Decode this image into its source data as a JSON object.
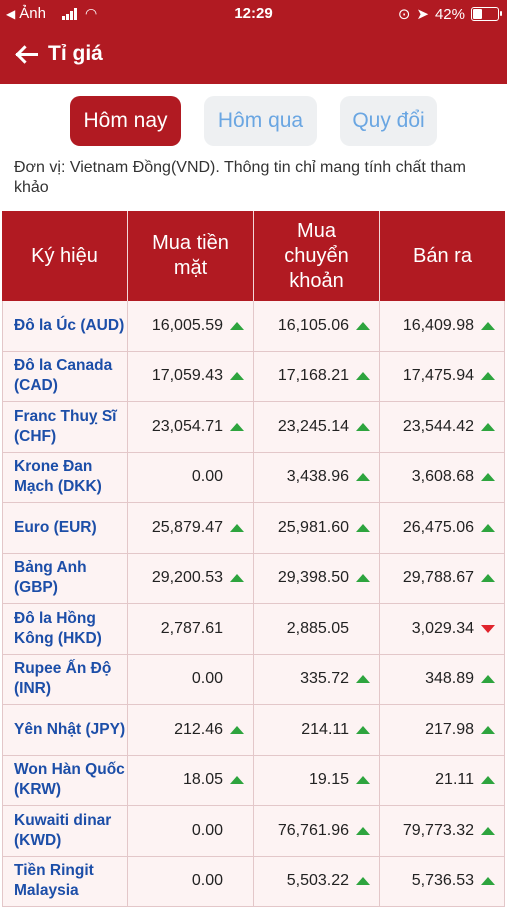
{
  "status_bar": {
    "back_app": "Ảnh",
    "time": "12:29",
    "battery": "42%",
    "battery_level": 0.42
  },
  "header": {
    "title": "Tỉ giá"
  },
  "tabs": [
    {
      "label": "Hôm nay",
      "active": true
    },
    {
      "label": "Hôm qua",
      "active": false
    },
    {
      "label": "Quy đổi",
      "active": false
    }
  ],
  "note": "Đơn vị: Vietnam Đồng(VND). Thông tin chỉ mang tính chất tham khảo",
  "table": {
    "headers": [
      "Ký hiệu",
      "Mua tiền mặt",
      "Mua chuyển khoản",
      "Bán ra"
    ],
    "rows": [
      {
        "name": "Đô la Úc (AUD)",
        "cash": "16,005.59",
        "cash_trend": "up",
        "transfer": "16,105.06",
        "transfer_trend": "up",
        "sell": "16,409.98",
        "sell_trend": "up"
      },
      {
        "name": "Đô la Canada (CAD)",
        "cash": "17,059.43",
        "cash_trend": "up",
        "transfer": "17,168.21",
        "transfer_trend": "up",
        "sell": "17,475.94",
        "sell_trend": "up"
      },
      {
        "name": "Franc Thuỵ Sĩ (CHF)",
        "cash": "23,054.71",
        "cash_trend": "up",
        "transfer": "23,245.14",
        "transfer_trend": "up",
        "sell": "23,544.42",
        "sell_trend": "up"
      },
      {
        "name": "Krone Đan Mạch (DKK)",
        "cash": "0.00",
        "cash_trend": "none",
        "transfer": "3,438.96",
        "transfer_trend": "up",
        "sell": "3,608.68",
        "sell_trend": "up"
      },
      {
        "name": "Euro (EUR)",
        "cash": "25,879.47",
        "cash_trend": "up",
        "transfer": "25,981.60",
        "transfer_trend": "up",
        "sell": "26,475.06",
        "sell_trend": "up"
      },
      {
        "name": "Bảng Anh (GBP)",
        "cash": "29,200.53",
        "cash_trend": "up",
        "transfer": "29,398.50",
        "transfer_trend": "up",
        "sell": "29,788.67",
        "sell_trend": "up"
      },
      {
        "name": "Đô la Hồng Kông (HKD)",
        "cash": "2,787.61",
        "cash_trend": "none",
        "transfer": "2,885.05",
        "transfer_trend": "none",
        "sell": "3,029.34",
        "sell_trend": "down"
      },
      {
        "name": "Rupee Ấn Độ (INR)",
        "cash": "0.00",
        "cash_trend": "none",
        "transfer": "335.72",
        "transfer_trend": "up",
        "sell": "348.89",
        "sell_trend": "up"
      },
      {
        "name": "Yên Nhật (JPY)",
        "cash": "212.46",
        "cash_trend": "up",
        "transfer": "214.11",
        "transfer_trend": "up",
        "sell": "217.98",
        "sell_trend": "up"
      },
      {
        "name": "Won Hàn Quốc (KRW)",
        "cash": "18.05",
        "cash_trend": "up",
        "transfer": "19.15",
        "transfer_trend": "up",
        "sell": "21.11",
        "sell_trend": "up"
      },
      {
        "name": "Kuwaiti dinar (KWD)",
        "cash": "0.00",
        "cash_trend": "none",
        "transfer": "76,761.96",
        "transfer_trend": "up",
        "sell": "79,773.32",
        "sell_trend": "up"
      },
      {
        "name": "Tiền Ringit Malaysia",
        "cash": "0.00",
        "cash_trend": "none",
        "transfer": "5,503.22",
        "transfer_trend": "up",
        "sell": "5,736.53",
        "sell_trend": "up"
      }
    ]
  },
  "colors": {
    "primary": "#b11a22",
    "link": "#1c4ea8",
    "up": "#2ea43e",
    "down": "#e0242c",
    "tab_inactive_text": "#6aa6e2"
  }
}
